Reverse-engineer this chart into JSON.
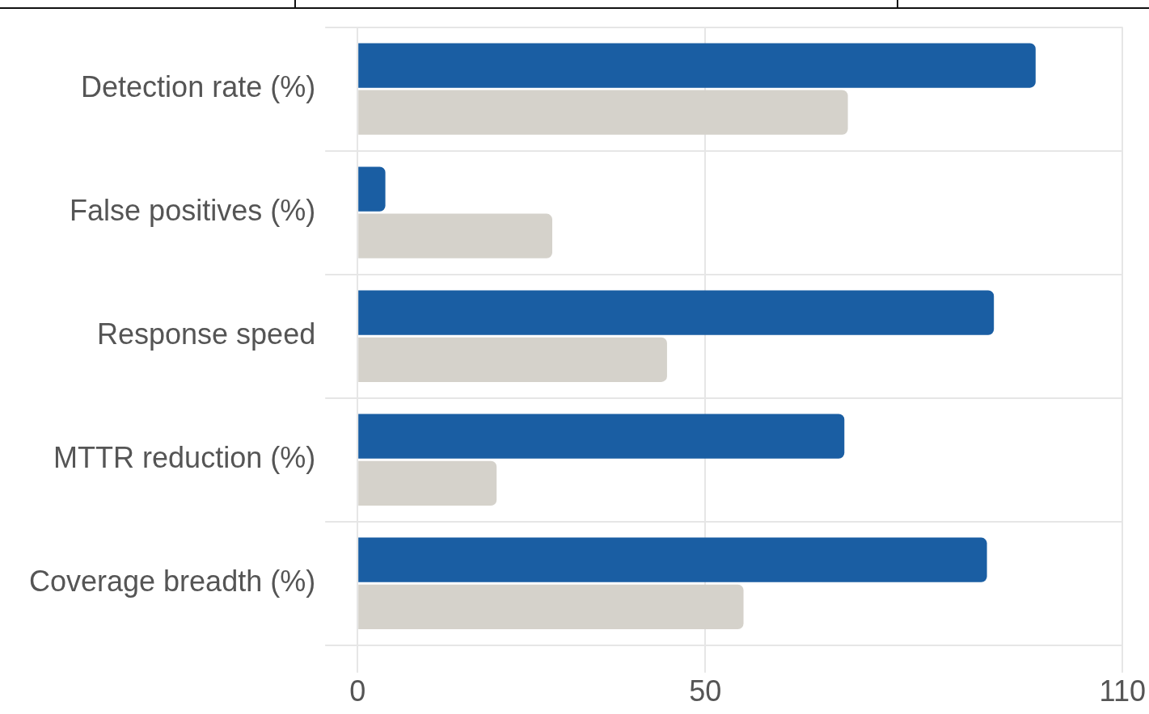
{
  "chart_data": {
    "type": "bar",
    "orientation": "horizontal",
    "categories": [
      "Detection rate (%)",
      "False positives (%)",
      "Response speed",
      "MTTR reduction (%)",
      "Coverage breadth (%)"
    ],
    "series": [
      {
        "color": "#1a5ea3",
        "values": [
          97.5,
          4,
          91.5,
          70,
          90.5
        ]
      },
      {
        "color": "#d5d2cb",
        "values": [
          70.5,
          28,
          44.5,
          20,
          55.5
        ]
      }
    ],
    "xlim": [
      0,
      110
    ],
    "xticks": [
      0,
      50,
      110
    ],
    "grid": true
  }
}
